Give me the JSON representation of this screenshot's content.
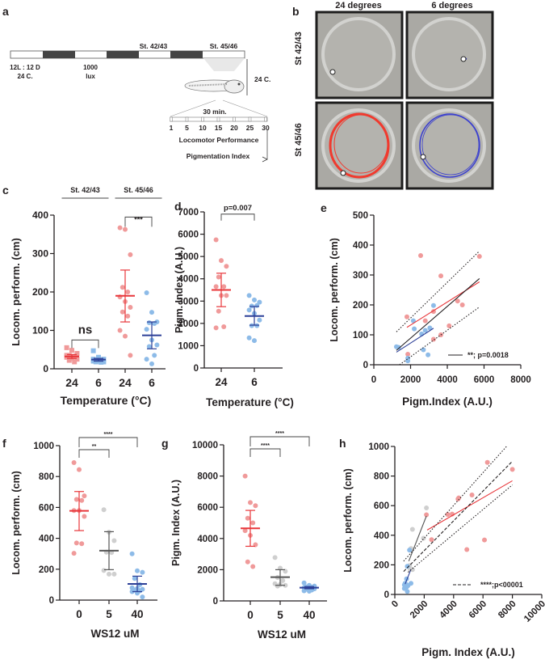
{
  "colors": {
    "red_point": "#f09a9a",
    "red_line": "#e8363a",
    "blue_point": "#8dbbe8",
    "blue_line": "#2c3f97",
    "grey_point": "#cfcfcf",
    "black": "#231f20",
    "dish_bg": "#a9a8a3",
    "track_red": "#f03a2e",
    "track_blue": "#3a3fcf"
  },
  "panel_labels": {
    "a": "a",
    "b": "b",
    "c": "c",
    "d": "d",
    "e": "e",
    "f": "f",
    "g": "g",
    "h": "h"
  },
  "panel_a": {
    "stage1": "St. 42/43",
    "stage2": "St. 45/46",
    "cycle_line1": "12L : 12 D",
    "cycle_line2": "24 C.",
    "lux_line1": "1000",
    "lux_line2": "lux",
    "temp": "24 C.",
    "duration": "30 min.",
    "ticks": [
      "1",
      "5",
      "10",
      "15",
      "20",
      "25",
      "30"
    ],
    "measure1": "Locomotor Performance",
    "measure2": "Pigmentation Index"
  },
  "panel_b": {
    "col_headers": [
      "24 degrees",
      "6 degrees"
    ],
    "row_headers": [
      "St 42/43",
      "St 45/46"
    ]
  },
  "chart_data": [
    {
      "panel": "c",
      "type": "scatter",
      "title": "",
      "xlabel": "Temperature (°C)",
      "ylabel": "Locom. perform. (cm)",
      "ylim": [
        0,
        400
      ],
      "yticks": [
        "0",
        "100",
        "200",
        "300",
        "400"
      ],
      "categories": [
        "24",
        "6",
        "24",
        "6"
      ],
      "group_headers": [
        "St. 42/43",
        "St. 45/46"
      ],
      "series": [
        {
          "name": "St.42/43 24C",
          "color": "red",
          "marker": "square",
          "values": [
            55,
            48,
            40,
            35,
            32,
            30,
            28,
            25,
            22,
            18,
            35,
            28
          ],
          "mean": 32,
          "err": [
            27,
            37
          ]
        },
        {
          "name": "St.42/43 6C",
          "color": "blue",
          "marker": "square",
          "values": [
            47,
            30,
            25,
            22,
            22,
            20,
            20,
            18,
            18,
            17,
            25,
            22
          ],
          "mean": 24,
          "err": [
            20,
            27
          ]
        },
        {
          "name": "St.45/46 24C",
          "color": "red",
          "marker": "circle",
          "values": [
            367,
            363,
            297,
            212,
            200,
            187,
            175,
            160,
            148,
            137,
            100,
            85,
            35
          ],
          "mean": 190,
          "err": [
            122,
            257
          ]
        },
        {
          "name": "St.45/46 6C",
          "color": "blue",
          "marker": "circle",
          "values": [
            198,
            147,
            122,
            120,
            118,
            103,
            75,
            62,
            58,
            35,
            25,
            13
          ],
          "mean": 87,
          "err": [
            52,
            122
          ]
        }
      ],
      "significance": [
        {
          "between": [
            0,
            1
          ],
          "label": "ns"
        },
        {
          "between": [
            2,
            3
          ],
          "label": "***"
        }
      ]
    },
    {
      "panel": "d",
      "type": "scatter",
      "xlabel": "Temperature (°C)",
      "ylabel": "Pigm. Index (A.U.)",
      "ylim": [
        0,
        7000
      ],
      "yticks": [
        "0",
        "1000",
        "2000",
        "3000",
        "4000",
        "5000",
        "6000",
        "7000"
      ],
      "categories": [
        "24",
        "6"
      ],
      "series": [
        {
          "name": "24C",
          "color": "red",
          "values": [
            5750,
            4820,
            4560,
            4080,
            3650,
            3650,
            3250,
            3250,
            2550,
            1850,
            1800
          ],
          "mean": 3500,
          "err": [
            2750,
            4250
          ]
        },
        {
          "name": "6C",
          "color": "blue",
          "values": [
            3250,
            3050,
            2950,
            2780,
            2800,
            2600,
            2450,
            2150,
            1900,
            1900,
            1350,
            1230
          ],
          "mean": 2330,
          "err": [
            1920,
            2760
          ]
        }
      ],
      "significance": [
        {
          "between": [
            0,
            1
          ],
          "label": "p=0.007"
        }
      ]
    },
    {
      "panel": "e",
      "type": "scatter",
      "xlabel": "Pigm.Index (A.U.)",
      "ylabel": "Locom. perform. (cm)",
      "xlim": [
        0,
        8000
      ],
      "ylim": [
        0,
        500
      ],
      "xticks": [
        "0",
        "2000",
        "4000",
        "6000",
        "8000"
      ],
      "yticks": [
        "0",
        "100",
        "200",
        "300",
        "400",
        "500"
      ],
      "series": [
        {
          "name": "24C",
          "color": "red",
          "points": [
            [
              2550,
              365
            ],
            [
              5750,
              362
            ],
            [
              3650,
              297
            ],
            [
              4560,
              213
            ],
            [
              4820,
              200
            ],
            [
              1800,
              160
            ],
            [
              3250,
              178
            ],
            [
              2800,
              147
            ],
            [
              4100,
              130
            ],
            [
              3650,
              100
            ],
            [
              3250,
              85
            ],
            [
              1850,
              35
            ]
          ]
        },
        {
          "name": "6C",
          "color": "blue",
          "points": [
            [
              3250,
              198
            ],
            [
              2150,
              147
            ],
            [
              2200,
              120
            ],
            [
              3050,
              123
            ],
            [
              2800,
              115
            ],
            [
              2600,
              103
            ],
            [
              1230,
              60
            ],
            [
              1350,
              58
            ],
            [
              2700,
              50
            ],
            [
              2950,
              33
            ],
            [
              1850,
              22
            ],
            [
              1850,
              13
            ]
          ]
        }
      ],
      "fits": [
        {
          "color": "red",
          "from": [
            1800,
            125
          ],
          "to": [
            5750,
            277
          ]
        },
        {
          "color": "blue",
          "from": [
            1230,
            42
          ],
          "to": [
            3250,
            122
          ]
        },
        {
          "color": "black",
          "from": [
            1230,
            48
          ],
          "to": [
            5750,
            288
          ]
        },
        {
          "color": "black",
          "style": "dotted",
          "from": [
            1230,
            110
          ],
          "to": [
            5750,
            380
          ]
        },
        {
          "color": "black",
          "style": "dotted",
          "from": [
            1400,
            0
          ],
          "to": [
            5750,
            193
          ]
        }
      ],
      "legend": "**; p=0.0018"
    },
    {
      "panel": "f",
      "type": "scatter",
      "xlabel": "WS12 uM",
      "ylabel": "Locom. perform. (cm)",
      "ylim": [
        0,
        1000
      ],
      "yticks": [
        "0",
        "200",
        "400",
        "600",
        "800",
        "1000"
      ],
      "categories": [
        "0",
        "5",
        "40"
      ],
      "series": [
        {
          "name": "0",
          "color": "red",
          "values": [
            890,
            845,
            675,
            652,
            645,
            580,
            580,
            542,
            370,
            365,
            303
          ],
          "mean": 578,
          "err": [
            450,
            703
          ]
        },
        {
          "name": "5",
          "color": "grey",
          "values": [
            585,
            440,
            385,
            310,
            308,
            192,
            168,
            168
          ],
          "mean": 320,
          "err": [
            197,
            443
          ]
        },
        {
          "name": "40",
          "color": "blue",
          "values": [
            300,
            190,
            180,
            140,
            100,
            80,
            75,
            70,
            65,
            60,
            55,
            45,
            20
          ],
          "mean": 105,
          "err": [
            55,
            155
          ]
        }
      ],
      "significance": [
        {
          "between": [
            0,
            1
          ],
          "label": "**"
        },
        {
          "between": [
            0,
            2
          ],
          "label": "****"
        }
      ]
    },
    {
      "panel": "g",
      "type": "scatter",
      "xlabel": "WS12 uM",
      "ylabel": "Pigm. Index (A.U.)",
      "ylim": [
        0,
        10000
      ],
      "yticks": [
        "0",
        "2000",
        "4000",
        "6000",
        "8000",
        "10000"
      ],
      "categories": [
        "0",
        "5",
        "40"
      ],
      "series": [
        {
          "name": "0",
          "color": "red",
          "values": [
            8000,
            6300,
            6100,
            5300,
            5000,
            4500,
            4200,
            3600,
            2500,
            2200
          ],
          "mean": 4650,
          "err": [
            3500,
            5800
          ]
        },
        {
          "name": "5",
          "color": "grey",
          "values": [
            2780,
            2100,
            1900,
            1500,
            1300,
            1100,
            1050,
            1000,
            950
          ],
          "mean": 1520,
          "err": [
            1000,
            2000
          ]
        },
        {
          "name": "40",
          "color": "blue",
          "values": [
            1150,
            1000,
            950,
            900,
            880,
            850,
            800,
            780,
            750,
            700,
            650,
            620
          ],
          "mean": 850,
          "err": [
            780,
            920
          ]
        }
      ],
      "significance": [
        {
          "between": [
            0,
            1
          ],
          "label": "****"
        },
        {
          "between": [
            0,
            2
          ],
          "label": "****"
        }
      ]
    },
    {
      "panel": "h",
      "type": "scatter",
      "xlabel": "Pigm. Index (A.U.)",
      "ylabel": "Locom. perform. (cm)",
      "xlim": [
        0,
        10000
      ],
      "ylim": [
        0,
        1000
      ],
      "xticks": [
        "0",
        "2000",
        "4000",
        "6000",
        "8000",
        "10000"
      ],
      "yticks": [
        "0",
        "200",
        "400",
        "600",
        "800",
        "1000"
      ],
      "series": [
        {
          "name": "0",
          "color": "red",
          "points": [
            [
              6300,
              892
            ],
            [
              8000,
              845
            ],
            [
              5250,
              672
            ],
            [
              4350,
              652
            ],
            [
              4300,
              645
            ],
            [
              3600,
              540
            ],
            [
              3900,
              543
            ],
            [
              2150,
              538
            ],
            [
              2500,
              370
            ],
            [
              6100,
              368
            ],
            [
              4900,
              303
            ]
          ]
        },
        {
          "name": "5",
          "color": "grey",
          "points": [
            [
              2150,
              585
            ],
            [
              1200,
              440
            ],
            [
              1950,
              380
            ],
            [
              1100,
              310
            ],
            [
              1000,
              195
            ],
            [
              1050,
              170
            ],
            [
              1200,
              168
            ],
            [
              1050,
              300
            ]
          ]
        },
        {
          "name": "40",
          "color": "blue",
          "points": [
            [
              1000,
              300
            ],
            [
              850,
              190
            ],
            [
              800,
              105
            ],
            [
              700,
              75
            ],
            [
              1100,
              75
            ],
            [
              650,
              65
            ],
            [
              750,
              70
            ],
            [
              900,
              60
            ],
            [
              700,
              55
            ],
            [
              800,
              50
            ],
            [
              650,
              40
            ],
            [
              850,
              20
            ]
          ]
        }
      ],
      "fits": [
        {
          "color": "red",
          "from": [
            2200,
            435
          ],
          "to": [
            8000,
            768
          ]
        },
        {
          "color": "grey",
          "from": [
            950,
            225
          ],
          "to": [
            2150,
            530
          ]
        },
        {
          "color": "blue",
          "from": [
            700,
            70
          ],
          "to": [
            1100,
            170
          ]
        },
        {
          "color": "black",
          "style": "dashed",
          "from": [
            600,
            155
          ],
          "to": [
            8000,
            900
          ]
        },
        {
          "color": "black",
          "style": "dotted",
          "from": [
            600,
            225
          ],
          "to": [
            7600,
            1000
          ]
        },
        {
          "color": "black",
          "style": "dotted",
          "from": [
            900,
            150
          ],
          "to": [
            8000,
            740
          ]
        }
      ],
      "legend": "****;p<00001"
    }
  ]
}
